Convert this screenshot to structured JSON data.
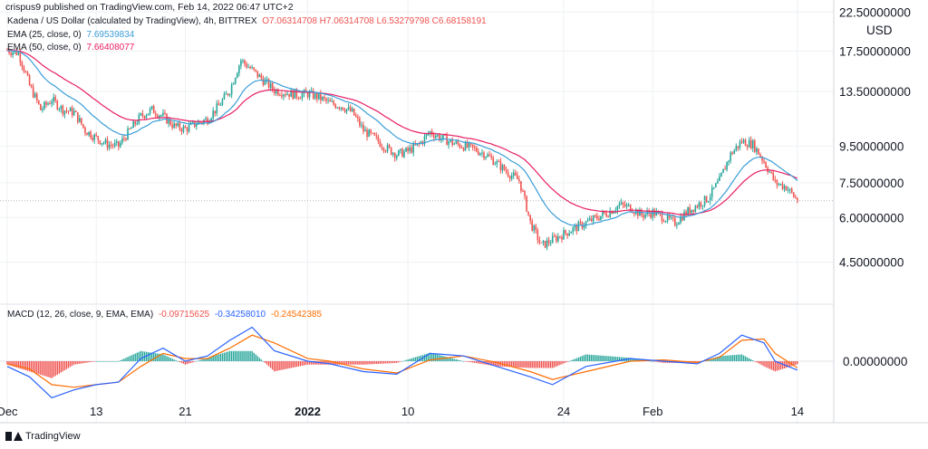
{
  "header": {
    "published": "crispus9 published on TradingView.com, Feb 14, 2022 06:47 UTC+2",
    "symbol_line": "Kadena / US Dollar (calculated by TradingView), 4h, BITTREX",
    "ohlc": "O7.06314708 H7.06314708 L6.53279798 C6.68158191"
  },
  "legend": {
    "ema25_label": "EMA (25, close, 0)",
    "ema25_value": "7.69539834",
    "ema50_label": "EMA (50, close, 0)",
    "ema50_value": "7.66408077",
    "macd_label": "MACD (12, 26, close, 9, EMA, EMA)",
    "macd_hist": "-0.09715625",
    "macd_line": "-0.34258010",
    "macd_signal": "-0.24542385"
  },
  "colors": {
    "up": "#26a69a",
    "down": "#ef5350",
    "ema25": "#3b9ed8",
    "ema50": "#e91e63",
    "macd": "#2962ff",
    "signal": "#ff6d00",
    "grid": "#eef0f3"
  },
  "footer": {
    "brand": "TradingView",
    "logo_icon": "tradingview-logo-icon"
  },
  "chart_data": [
    {
      "type": "candlestick",
      "ylabel": "USD",
      "y_ticks": [
        "22.50000000",
        "17.50000000",
        "13.50000000",
        "9.50000000",
        "7.50000000",
        "6.00000000",
        "4.50000000"
      ],
      "y_tick_values": [
        22.5,
        17.5,
        13.5,
        9.5,
        7.5,
        6.0,
        4.5
      ],
      "scale": "log",
      "ylim": [
        3.6,
        23.2
      ],
      "last_price": 6.68158191,
      "x_ticks": [
        "Dec",
        "13",
        "21",
        "2022",
        "10",
        "24",
        "Feb",
        "14"
      ],
      "x_tick_dates": [
        "2021-12-05",
        "2021-12-13",
        "2021-12-21",
        "2022-01-01",
        "2022-01-10",
        "2022-01-24",
        "2022-02-01",
        "2022-02-14"
      ],
      "close_path": [
        [
          "2021-12-05",
          17.6
        ],
        [
          "2021-12-06",
          17.3
        ],
        [
          "2021-12-07",
          14.0
        ],
        [
          "2021-12-08",
          12.0
        ],
        [
          "2021-12-09",
          12.8
        ],
        [
          "2021-12-10",
          12.0
        ],
        [
          "2021-12-11",
          11.8
        ],
        [
          "2021-12-12",
          10.5
        ],
        [
          "2021-12-13",
          10.0
        ],
        [
          "2021-12-14",
          9.6
        ],
        [
          "2021-12-15",
          9.5
        ],
        [
          "2021-12-16",
          10.5
        ],
        [
          "2021-12-17",
          11.5
        ],
        [
          "2021-12-18",
          12.0
        ],
        [
          "2021-12-19",
          11.5
        ],
        [
          "2021-12-20",
          10.8
        ],
        [
          "2021-12-21",
          10.6
        ],
        [
          "2021-12-22",
          11.0
        ],
        [
          "2021-12-23",
          11.3
        ],
        [
          "2021-12-24",
          12.3
        ],
        [
          "2021-12-25",
          13.6
        ],
        [
          "2021-12-26",
          16.5
        ],
        [
          "2021-12-27",
          15.5
        ],
        [
          "2021-12-28",
          14.5
        ],
        [
          "2021-12-29",
          13.6
        ],
        [
          "2021-12-30",
          13.4
        ],
        [
          "2021-12-31",
          13.2
        ],
        [
          "2022-01-01",
          13.3
        ],
        [
          "2022-01-02",
          13.0
        ],
        [
          "2022-01-03",
          12.5
        ],
        [
          "2022-01-04",
          12.3
        ],
        [
          "2022-01-05",
          11.8
        ],
        [
          "2022-01-06",
          10.5
        ],
        [
          "2022-01-07",
          10.0
        ],
        [
          "2022-01-08",
          9.4
        ],
        [
          "2022-01-09",
          9.0
        ],
        [
          "2022-01-10",
          9.2
        ],
        [
          "2022-01-11",
          9.6
        ],
        [
          "2022-01-12",
          10.4
        ],
        [
          "2022-01-13",
          10.0
        ],
        [
          "2022-01-14",
          9.7
        ],
        [
          "2022-01-15",
          9.5
        ],
        [
          "2022-01-16",
          9.3
        ],
        [
          "2022-01-17",
          9.0
        ],
        [
          "2022-01-18",
          8.5
        ],
        [
          "2022-01-19",
          8.0
        ],
        [
          "2022-01-20",
          7.6
        ],
        [
          "2022-01-21",
          5.8
        ],
        [
          "2022-01-22",
          5.0
        ],
        [
          "2022-01-23",
          5.2
        ],
        [
          "2022-01-24",
          5.4
        ],
        [
          "2022-01-25",
          5.6
        ],
        [
          "2022-01-26",
          5.8
        ],
        [
          "2022-01-27",
          6.0
        ],
        [
          "2022-01-28",
          6.2
        ],
        [
          "2022-01-29",
          6.5
        ],
        [
          "2022-01-30",
          6.4
        ],
        [
          "2022-01-31",
          6.1
        ],
        [
          "2022-02-01",
          6.2
        ],
        [
          "2022-02-02",
          6.0
        ],
        [
          "2022-02-03",
          5.8
        ],
        [
          "2022-02-04",
          6.2
        ],
        [
          "2022-02-05",
          6.5
        ],
        [
          "2022-02-06",
          6.8
        ],
        [
          "2022-02-07",
          7.6
        ],
        [
          "2022-02-08",
          9.0
        ],
        [
          "2022-02-09",
          9.8
        ],
        [
          "2022-02-10",
          9.6
        ],
        [
          "2022-02-11",
          8.6
        ],
        [
          "2022-02-12",
          7.5
        ],
        [
          "2022-02-13",
          7.3
        ],
        [
          "2022-02-14",
          6.68
        ]
      ]
    },
    {
      "type": "macd",
      "y_ticks": [
        "0.00000000"
      ],
      "y_tick_values": [
        0
      ],
      "macd_path": [
        [
          "2021-12-05",
          -0.2
        ],
        [
          "2021-12-07",
          -0.6
        ],
        [
          "2021-12-09",
          -1.4
        ],
        [
          "2021-12-11",
          -1.1
        ],
        [
          "2021-12-13",
          -0.9
        ],
        [
          "2021-12-15",
          -0.8
        ],
        [
          "2021-12-17",
          0.1
        ],
        [
          "2021-12-19",
          0.5
        ],
        [
          "2021-12-21",
          0.0
        ],
        [
          "2021-12-23",
          0.2
        ],
        [
          "2021-12-25",
          0.8
        ],
        [
          "2021-12-27",
          1.3
        ],
        [
          "2021-12-29",
          0.4
        ],
        [
          "2022-01-01",
          0.0
        ],
        [
          "2022-01-03",
          -0.1
        ],
        [
          "2022-01-06",
          -0.4
        ],
        [
          "2022-01-09",
          -0.5
        ],
        [
          "2022-01-12",
          0.3
        ],
        [
          "2022-01-15",
          0.2
        ],
        [
          "2022-01-18",
          -0.2
        ],
        [
          "2022-01-21",
          -0.6
        ],
        [
          "2022-01-23",
          -0.9
        ],
        [
          "2022-01-26",
          -0.2
        ],
        [
          "2022-01-30",
          0.1
        ],
        [
          "2022-02-02",
          0.0
        ],
        [
          "2022-02-05",
          -0.1
        ],
        [
          "2022-02-07",
          0.3
        ],
        [
          "2022-02-09",
          1.0
        ],
        [
          "2022-02-11",
          0.7
        ],
        [
          "2022-02-12",
          0.0
        ],
        [
          "2022-02-14",
          -0.34
        ]
      ],
      "signal_path": [
        [
          "2021-12-05",
          -0.1
        ],
        [
          "2021-12-07",
          -0.3
        ],
        [
          "2021-12-09",
          -0.9
        ],
        [
          "2021-12-11",
          -1.0
        ],
        [
          "2021-12-13",
          -0.9
        ],
        [
          "2021-12-15",
          -0.8
        ],
        [
          "2021-12-17",
          -0.2
        ],
        [
          "2021-12-19",
          0.3
        ],
        [
          "2021-12-21",
          0.1
        ],
        [
          "2021-12-23",
          0.1
        ],
        [
          "2021-12-25",
          0.5
        ],
        [
          "2021-12-27",
          1.0
        ],
        [
          "2021-12-29",
          0.7
        ],
        [
          "2022-01-01",
          0.1
        ],
        [
          "2022-01-03",
          0.0
        ],
        [
          "2022-01-06",
          -0.3
        ],
        [
          "2022-01-09",
          -0.45
        ],
        [
          "2022-01-12",
          0.05
        ],
        [
          "2022-01-15",
          0.2
        ],
        [
          "2022-01-18",
          -0.05
        ],
        [
          "2022-01-21",
          -0.4
        ],
        [
          "2022-01-23",
          -0.7
        ],
        [
          "2022-01-26",
          -0.4
        ],
        [
          "2022-01-30",
          0.0
        ],
        [
          "2022-02-02",
          0.05
        ],
        [
          "2022-02-05",
          -0.05
        ],
        [
          "2022-02-07",
          0.15
        ],
        [
          "2022-02-09",
          0.8
        ],
        [
          "2022-02-11",
          0.85
        ],
        [
          "2022-02-12",
          0.3
        ],
        [
          "2022-02-14",
          -0.25
        ]
      ],
      "ylim": [
        -1.7,
        1.7
      ]
    }
  ]
}
